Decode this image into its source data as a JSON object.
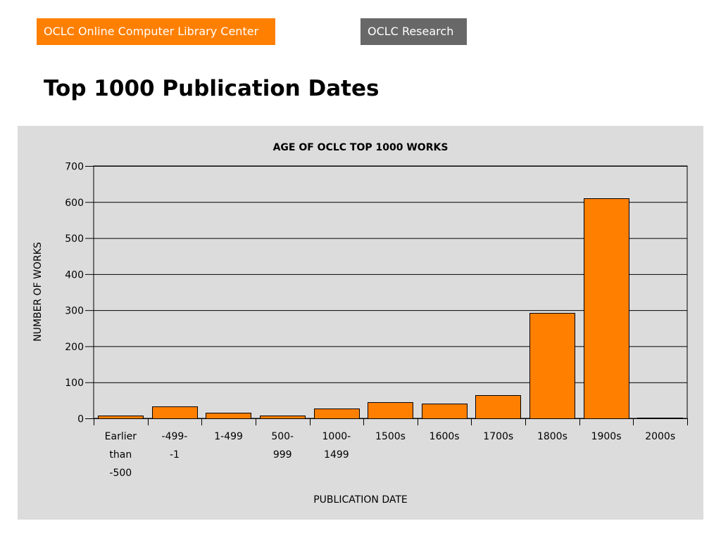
{
  "header": {
    "orange_tab_label": "OCLC Online Computer Library Center",
    "gray_tab_label": "OCLC Research"
  },
  "page": {
    "title": "Top 1000 Publication Dates"
  },
  "colors": {
    "orange_accent": "#ff7f00",
    "gray_tab": "#686868",
    "panel_background": "#dcdcdc",
    "bar_fill": "#ff7f00",
    "bar_stroke": "#000000"
  },
  "chart_data": {
    "type": "bar",
    "title": "AGE OF OCLC TOP 1000 WORKS",
    "xlabel": "PUBLICATION DATE",
    "ylabel": "NUMBER OF WORKS",
    "ylim": [
      0,
      700
    ],
    "yticks": [
      0,
      100,
      200,
      300,
      400,
      500,
      600,
      700
    ],
    "grid": true,
    "legend": "none",
    "categories": [
      [
        "Earlier",
        "than",
        "-500"
      ],
      [
        "-499-",
        "-1"
      ],
      [
        "1-499"
      ],
      [
        "500-",
        "999"
      ],
      [
        "1000-",
        "1499"
      ],
      [
        "1500s"
      ],
      [
        "1600s"
      ],
      [
        "1700s"
      ],
      [
        "1800s"
      ],
      [
        "1900s"
      ],
      [
        "2000s"
      ]
    ],
    "values": [
      7,
      33,
      15,
      8,
      28,
      45,
      41,
      64,
      292,
      610,
      2
    ]
  }
}
